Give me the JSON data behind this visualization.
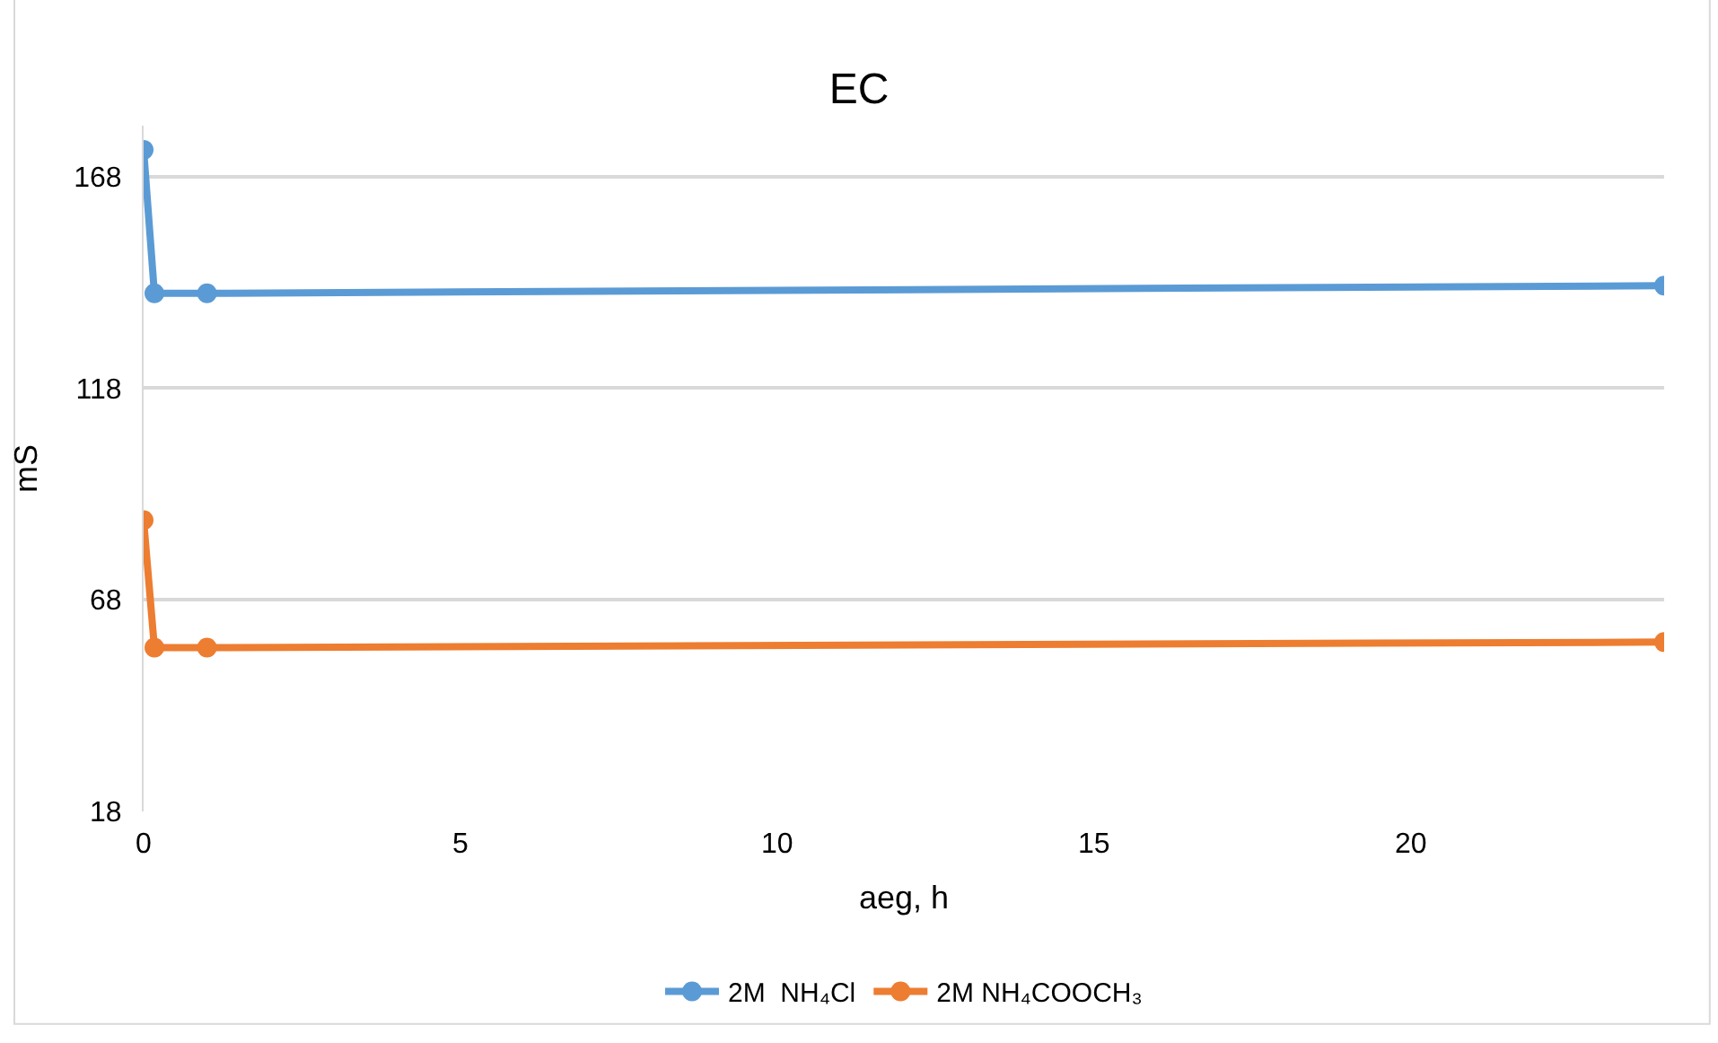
{
  "chart_data": {
    "type": "line",
    "title": "EC",
    "xlabel": "aeg, h",
    "ylabel": "mS",
    "xlim": [
      0,
      24
    ],
    "xticks": [
      0,
      5,
      10,
      15,
      20
    ],
    "ylim": [
      18,
      180
    ],
    "yticks": [
      18,
      68,
      118,
      168
    ],
    "grid": "y",
    "legend": "bottom",
    "marker": "circle",
    "line_style": "solid",
    "series": [
      {
        "name": "2M  NH₄Cl",
        "color": "#5b9bd5",
        "x": [
          0,
          0.17,
          1,
          24
        ],
        "values": [
          174.3,
          140.4,
          140.4,
          142.2
        ]
      },
      {
        "name": "2M NH₄COOCH₃",
        "color": "#ed7d31",
        "x": [
          0,
          0.17,
          1,
          24
        ],
        "values": [
          86.8,
          56.7,
          56.7,
          58
        ]
      }
    ]
  }
}
